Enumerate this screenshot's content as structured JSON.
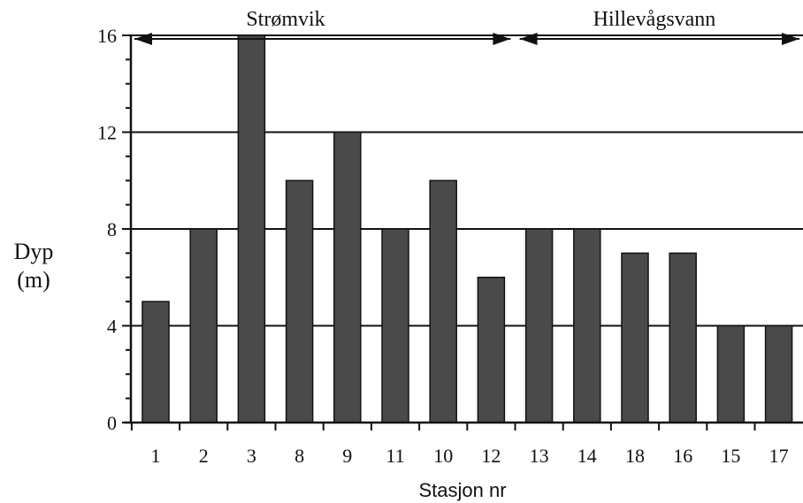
{
  "chart_data": {
    "type": "bar",
    "categories": [
      "1",
      "2",
      "3",
      "8",
      "9",
      "11",
      "10",
      "12",
      "13",
      "14",
      "18",
      "16",
      "15",
      "17"
    ],
    "values": [
      5,
      8,
      16,
      10,
      12,
      8,
      10,
      6,
      8,
      8,
      7,
      7,
      4,
      4
    ],
    "ylabel_line1": "Dyp",
    "ylabel_line2": "(m)",
    "xlabel": "Stasjon nr",
    "ylim": [
      0,
      16
    ],
    "yticks": [
      "0",
      "4",
      "8",
      "12",
      "16"
    ],
    "grid": true,
    "groups": [
      {
        "label": "Strømvik",
        "from": "1",
        "to": "12"
      },
      {
        "label": "Hillevågsvann",
        "from": "13",
        "to": "17"
      }
    ],
    "colors": {
      "bar": "#4a4a4a",
      "bar_stroke": "#111111",
      "axis": "#111111"
    }
  }
}
